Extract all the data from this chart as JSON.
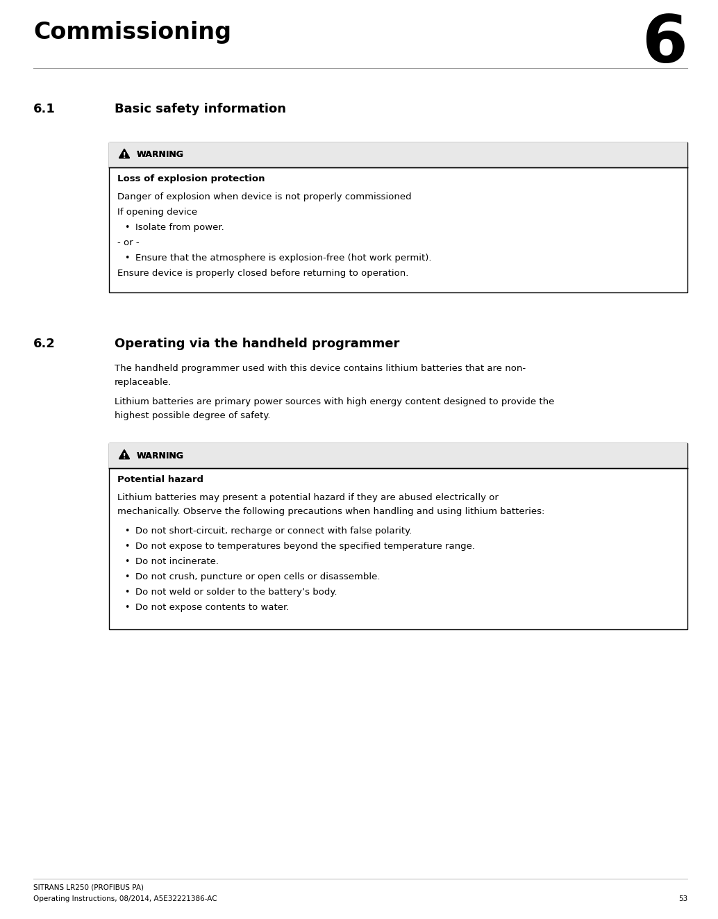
{
  "page_width": 10.34,
  "page_height": 13.23,
  "dpi": 100,
  "bg_color": "#ffffff",
  "text_color": "#000000",
  "chapter_number": "6",
  "chapter_title": "Commissioning",
  "section_61_num": "6.1",
  "section_61_title": "Basic safety information",
  "section_62_num": "6.2",
  "section_62_title": "Operating via the handheld programmer",
  "warning_label": "WARNING",
  "box1_title": "Loss of explosion protection",
  "box1_content": [
    {
      "text": "Danger of explosion when device is not properly commissioned",
      "bold": false,
      "bullet": false,
      "indent": 0
    },
    {
      "text": "If opening device",
      "bold": false,
      "bullet": false,
      "indent": 0
    },
    {
      "text": "Isolate from power.",
      "bold": false,
      "bullet": true,
      "indent": 1
    },
    {
      "text": "- or -",
      "bold": false,
      "bullet": false,
      "indent": 0
    },
    {
      "text": "Ensure that the atmosphere is explosion-free (hot work permit).",
      "bold": false,
      "bullet": true,
      "indent": 1
    },
    {
      "text": "Ensure device is properly closed before returning to operation.",
      "bold": false,
      "bullet": false,
      "indent": 0
    }
  ],
  "para1_lines": [
    "The handheld programmer used with this device contains lithium batteries that are non-",
    "replaceable."
  ],
  "para2_lines": [
    "Lithium batteries are primary power sources with high energy content designed to provide the",
    "highest possible degree of safety."
  ],
  "box2_title": "Potential hazard",
  "box2_intro_lines": [
    "Lithium batteries may present a potential hazard if they are abused electrically or",
    "mechanically. Observe the following precautions when handling and using lithium batteries:"
  ],
  "box2_bullets": [
    "Do not short-circuit, recharge or connect with false polarity.",
    "Do not expose to temperatures beyond the specified temperature range.",
    "Do not incinerate.",
    "Do not crush, puncture or open cells or disassemble.",
    "Do not weld or solder to the battery’s body.",
    "Do not expose contents to water."
  ],
  "footer_line1": "SITRANS LR250 (PROFIBUS PA)",
  "footer_line2": "Operating Instructions, 08/2014, A5E32221386-AC",
  "footer_page": "53",
  "border_color": "#000000",
  "warn_header_bg": "#e8e8e8",
  "box_bg": "#ffffff"
}
